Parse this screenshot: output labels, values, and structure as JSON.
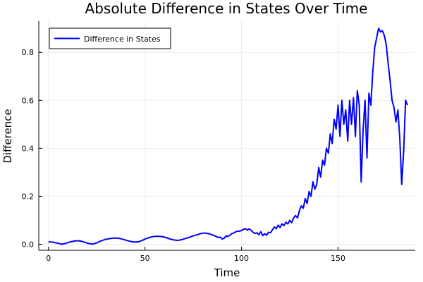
{
  "chart_data": {
    "type": "line",
    "title": "Absolute Difference in States Over Time",
    "xlabel": "Time",
    "ylabel": "Difference",
    "xlim": [
      -5,
      190
    ],
    "ylim": [
      -0.025,
      0.93
    ],
    "xticks": [
      0,
      50,
      100,
      150
    ],
    "xtick_labels": [
      "0",
      "50",
      "100",
      "150"
    ],
    "yticks": [
      0.0,
      0.2,
      0.4,
      0.6,
      0.8
    ],
    "ytick_labels": [
      "0.0",
      "0.2",
      "0.4",
      "0.6",
      "0.8"
    ],
    "grid": true,
    "legend_position": "top-left",
    "series": [
      {
        "name": "Difference in States",
        "color": "#0000ff",
        "x": [
          0,
          2,
          4,
          6,
          7,
          9,
          11,
          13,
          15,
          17,
          19,
          21,
          23,
          25,
          27,
          29,
          31,
          33,
          35,
          37,
          39,
          41,
          43,
          45,
          47,
          49,
          51,
          53,
          55,
          57,
          59,
          61,
          63,
          65,
          67,
          69,
          71,
          73,
          75,
          77,
          79,
          81,
          83,
          85,
          87,
          88,
          89,
          90,
          91,
          92,
          93,
          94,
          95,
          96,
          97,
          98,
          99,
          100,
          101,
          102,
          103,
          104,
          105,
          106,
          107,
          108,
          109,
          110,
          111,
          112,
          113,
          114,
          115,
          116,
          117,
          118,
          119,
          120,
          121,
          122,
          123,
          124,
          125,
          126,
          127,
          128,
          129,
          130,
          131,
          132,
          133,
          134,
          135,
          136,
          137,
          138,
          139,
          140,
          141,
          142,
          143,
          144,
          145,
          146,
          147,
          148,
          149,
          150,
          151,
          152,
          153,
          154,
          155,
          156,
          157,
          158,
          159,
          160,
          161,
          162,
          163,
          164,
          165,
          166,
          167,
          168,
          169,
          170,
          171,
          172,
          173,
          174,
          175,
          176,
          177,
          178,
          179,
          180,
          181,
          182,
          183,
          184,
          185,
          186
        ],
        "y": [
          0.01,
          0.009,
          0.006,
          0.002,
          0.0,
          0.004,
          0.009,
          0.013,
          0.015,
          0.013,
          0.008,
          0.003,
          0.001,
          0.006,
          0.013,
          0.019,
          0.023,
          0.025,
          0.026,
          0.024,
          0.02,
          0.015,
          0.011,
          0.009,
          0.011,
          0.018,
          0.025,
          0.03,
          0.033,
          0.033,
          0.032,
          0.028,
          0.022,
          0.018,
          0.016,
          0.019,
          0.024,
          0.029,
          0.035,
          0.04,
          0.045,
          0.047,
          0.044,
          0.039,
          0.032,
          0.028,
          0.03,
          0.022,
          0.025,
          0.035,
          0.032,
          0.038,
          0.045,
          0.047,
          0.052,
          0.055,
          0.054,
          0.058,
          0.062,
          0.065,
          0.06,
          0.064,
          0.058,
          0.05,
          0.045,
          0.048,
          0.04,
          0.052,
          0.036,
          0.044,
          0.038,
          0.05,
          0.048,
          0.06,
          0.072,
          0.065,
          0.08,
          0.07,
          0.085,
          0.078,
          0.092,
          0.085,
          0.1,
          0.09,
          0.11,
          0.12,
          0.11,
          0.14,
          0.16,
          0.15,
          0.19,
          0.17,
          0.22,
          0.2,
          0.26,
          0.23,
          0.25,
          0.32,
          0.28,
          0.35,
          0.33,
          0.4,
          0.38,
          0.46,
          0.42,
          0.52,
          0.48,
          0.58,
          0.45,
          0.6,
          0.5,
          0.56,
          0.43,
          0.6,
          0.5,
          0.61,
          0.45,
          0.64,
          0.58,
          0.26,
          0.48,
          0.6,
          0.36,
          0.63,
          0.58,
          0.72,
          0.82,
          0.86,
          0.9,
          0.885,
          0.89,
          0.87,
          0.83,
          0.75,
          0.68,
          0.6,
          0.57,
          0.51,
          0.56,
          0.44,
          0.25,
          0.39,
          0.6,
          0.58
        ]
      }
    ]
  }
}
